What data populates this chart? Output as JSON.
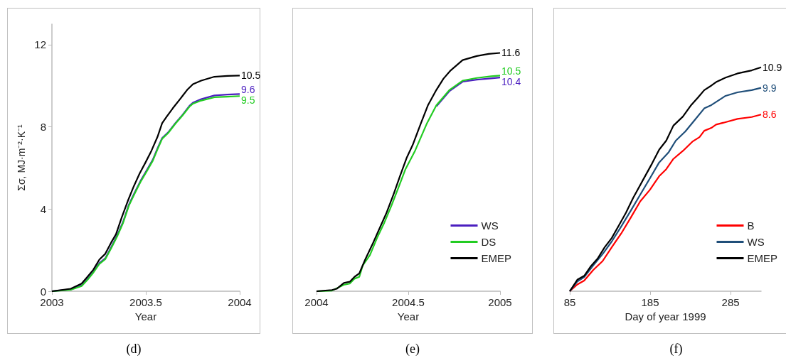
{
  "chart_data": [
    {
      "type": "line",
      "title": "(d)",
      "xlabel": "Year",
      "ylabel": "Σσ, MJ·m⁻²·K⁻¹",
      "xlim": [
        2003,
        2004
      ],
      "xticks": [
        2003,
        2003.5,
        2004
      ],
      "ylim": [
        0,
        13
      ],
      "yticks": [
        0,
        4,
        8,
        12
      ],
      "grid": false,
      "legend": false,
      "series": [
        {
          "color": "#4b1fc0",
          "x": [
            2003,
            2003.1,
            2003.158,
            2003.189,
            2003.22,
            2003.2525,
            2003.284,
            2003.316,
            2003.347,
            2003.379,
            2003.41,
            2003.442,
            2003.473,
            2003.505,
            2003.537,
            2003.562,
            2003.587,
            2003.619,
            2003.657,
            2003.694,
            2003.732,
            2003.751,
            2003.795,
            2003.865,
            2003.934,
            2004
          ],
          "values": [
            0,
            0.09,
            0.28,
            0.59,
            0.93,
            1.37,
            1.6,
            2.15,
            2.71,
            3.38,
            4.22,
            4.83,
            5.39,
            5.89,
            6.4,
            6.95,
            7.46,
            7.73,
            8.18,
            8.57,
            9.02,
            9.18,
            9.35,
            9.53,
            9.57,
            9.6
          ],
          "value_labels": [
            null,
            null,
            null,
            null,
            null,
            null,
            null,
            null,
            null,
            null,
            null,
            null,
            null,
            null,
            null,
            null,
            null,
            null,
            null,
            null,
            null,
            null,
            null,
            null,
            null,
            "9.6"
          ]
        },
        {
          "color": "#22cc22",
          "x": [
            2003,
            2003.1,
            2003.158,
            2003.189,
            2003.22,
            2003.2525,
            2003.284,
            2003.316,
            2003.347,
            2003.379,
            2003.41,
            2003.442,
            2003.473,
            2003.505,
            2003.537,
            2003.562,
            2003.587,
            2003.619,
            2003.657,
            2003.694,
            2003.732,
            2003.751,
            2003.795,
            2003.865,
            2003.934,
            2004
          ],
          "values": [
            0,
            0.07,
            0.25,
            0.55,
            0.9,
            1.33,
            1.56,
            2.1,
            2.66,
            3.33,
            4.17,
            4.78,
            5.34,
            5.84,
            6.35,
            6.9,
            7.42,
            7.7,
            8.15,
            8.54,
            8.98,
            9.13,
            9.28,
            9.44,
            9.47,
            9.5
          ],
          "value_labels": [
            null,
            null,
            null,
            null,
            null,
            null,
            null,
            null,
            null,
            null,
            null,
            null,
            null,
            null,
            null,
            null,
            null,
            null,
            null,
            null,
            null,
            null,
            null,
            null,
            null,
            "9.5"
          ]
        },
        {
          "color": "#000000",
          "x": [
            2003,
            2003.1,
            2003.158,
            2003.189,
            2003.22,
            2003.2525,
            2003.284,
            2003.316,
            2003.341,
            2003.372,
            2003.404,
            2003.436,
            2003.467,
            2003.499,
            2003.53,
            2003.562,
            2003.587,
            2003.612,
            2003.644,
            2003.682,
            2003.72,
            2003.751,
            2003.795,
            2003.865,
            2003.934,
            2004
          ],
          "values": [
            0,
            0.12,
            0.37,
            0.7,
            1.04,
            1.54,
            1.82,
            2.38,
            2.77,
            3.6,
            4.39,
            5.11,
            5.73,
            6.28,
            6.84,
            7.51,
            8.18,
            8.51,
            8.91,
            9.35,
            9.8,
            10.08,
            10.25,
            10.44,
            10.48,
            10.5
          ],
          "value_labels": [
            null,
            null,
            null,
            null,
            null,
            null,
            null,
            null,
            null,
            null,
            null,
            null,
            null,
            null,
            null,
            null,
            null,
            null,
            null,
            null,
            null,
            null,
            null,
            null,
            null,
            "10.5"
          ]
        }
      ]
    },
    {
      "type": "line",
      "title": "(e)",
      "xlabel": "Year",
      "xlim": [
        2004,
        2005
      ],
      "xticks": [
        2004,
        2004.5,
        2005
      ],
      "tick_labels": "x",
      "grid": false,
      "legend": "bottom right",
      "series": [
        {
          "name": "WS",
          "color": "#4b1fc0",
          "x": [
            2004.653,
            2004.725,
            2004.796,
            2004.873,
            2004.951,
            2005
          ],
          "values": [
            9.0,
            9.75,
            10.2,
            10.3,
            10.36,
            10.4
          ],
          "value_labels": [
            null,
            null,
            null,
            null,
            null,
            "10.4"
          ]
        },
        {
          "name": "DS",
          "color": "#22cc22",
          "x": [
            2004,
            2004.084,
            2004.149,
            2004.181,
            2004.207,
            2004.233,
            2004.252,
            2004.291,
            2004.33,
            2004.369,
            2004.408,
            2004.447,
            2004.485,
            2004.537,
            2004.602,
            2004.653,
            2004.725,
            2004.796,
            2004.873,
            2004.951,
            2005
          ],
          "values": [
            0,
            0.03,
            0.31,
            0.37,
            0.61,
            0.7,
            1.26,
            1.76,
            2.6,
            3.33,
            4.16,
            5.06,
            5.95,
            6.84,
            8.18,
            9.05,
            9.8,
            10.25,
            10.38,
            10.46,
            10.5
          ],
          "value_labels": [
            null,
            null,
            null,
            null,
            null,
            null,
            null,
            null,
            null,
            null,
            null,
            null,
            null,
            null,
            null,
            null,
            null,
            null,
            null,
            null,
            "10.5"
          ]
        },
        {
          "name": "EMEP",
          "color": "#000000",
          "x": [
            2004,
            2004.084,
            2004.11,
            2004.149,
            2004.181,
            2004.207,
            2004.233,
            2004.265,
            2004.304,
            2004.343,
            2004.382,
            2004.42,
            2004.453,
            2004.492,
            2004.524,
            2004.569,
            2004.608,
            2004.653,
            2004.692,
            2004.731,
            2004.796,
            2004.873,
            2004.938,
            2005
          ],
          "values": [
            0,
            0.06,
            0.12,
            0.4,
            0.46,
            0.7,
            0.87,
            1.54,
            2.27,
            3.05,
            3.83,
            4.72,
            5.56,
            6.51,
            7.12,
            8.18,
            9.07,
            9.8,
            10.35,
            10.75,
            11.25,
            11.45,
            11.55,
            11.6
          ],
          "value_labels": [
            null,
            null,
            null,
            null,
            null,
            null,
            null,
            null,
            null,
            null,
            null,
            null,
            null,
            null,
            null,
            null,
            null,
            null,
            null,
            null,
            null,
            null,
            null,
            "11.6"
          ]
        }
      ]
    },
    {
      "type": "line",
      "title": "(f)",
      "xlabel": "Day of year 1999",
      "xlim": [
        85,
        323
      ],
      "xticks": [
        85,
        185,
        285
      ],
      "tick_labels": "x",
      "grid": false,
      "legend": "bottom right",
      "series": [
        {
          "name": "B",
          "color": "#ff0000",
          "x": [
            85,
            94.4,
            103,
            114.1,
            125.9,
            137.2,
            149,
            161,
            172.8,
            184.6,
            196.2,
            205,
            213.9,
            225.7,
            237.5,
            246.3,
            252.3,
            261.1,
            267,
            278.8,
            293.6,
            311.3,
            323
          ],
          "values": [
            0,
            0.33,
            0.52,
            1.03,
            1.47,
            2.14,
            2.81,
            3.59,
            4.38,
            4.93,
            5.6,
            5.94,
            6.44,
            6.83,
            7.28,
            7.5,
            7.81,
            7.95,
            8.11,
            8.23,
            8.39,
            8.48,
            8.6
          ],
          "value_labels": [
            null,
            null,
            null,
            null,
            null,
            null,
            null,
            null,
            null,
            null,
            null,
            null,
            null,
            null,
            null,
            null,
            null,
            null,
            null,
            null,
            null,
            null,
            "8.6"
          ]
        },
        {
          "name": "WS",
          "color": "#1f4e79",
          "x": [
            85,
            94.4,
            103,
            114.1,
            125.9,
            137.2,
            149,
            161,
            172.8,
            184.6,
            196.2,
            208.1,
            216.9,
            228.8,
            240.6,
            252.3,
            261.1,
            270,
            278.8,
            293.6,
            311.3,
            323
          ],
          "values": [
            0,
            0.47,
            0.69,
            1.25,
            1.81,
            2.42,
            3.15,
            3.93,
            4.71,
            5.49,
            6.27,
            6.77,
            7.33,
            7.78,
            8.34,
            8.9,
            9.06,
            9.29,
            9.51,
            9.68,
            9.79,
            9.9
          ],
          "value_labels": [
            null,
            null,
            null,
            null,
            null,
            null,
            null,
            null,
            null,
            null,
            null,
            null,
            null,
            null,
            null,
            null,
            null,
            null,
            null,
            null,
            null,
            "9.9"
          ]
        },
        {
          "name": "EMEP",
          "color": "#000000",
          "x": [
            85,
            94.4,
            103,
            110.7,
            119.5,
            128.4,
            137.2,
            146,
            154.9,
            163.8,
            175.6,
            187.4,
            196.2,
            205,
            213.9,
            225.7,
            236,
            244.9,
            252.3,
            261.1,
            267,
            278.8,
            293.6,
            311.3,
            323
          ],
          "values": [
            0,
            0.56,
            0.75,
            1.19,
            1.58,
            2.14,
            2.59,
            3.2,
            3.82,
            4.54,
            5.38,
            6.22,
            6.89,
            7.33,
            8.06,
            8.5,
            9.06,
            9.45,
            9.79,
            10.01,
            10.18,
            10.4,
            10.6,
            10.75,
            10.9
          ],
          "value_labels": [
            null,
            null,
            null,
            null,
            null,
            null,
            null,
            null,
            null,
            null,
            null,
            null,
            null,
            null,
            null,
            null,
            null,
            null,
            null,
            null,
            null,
            null,
            null,
            null,
            "10.9"
          ]
        }
      ]
    }
  ]
}
